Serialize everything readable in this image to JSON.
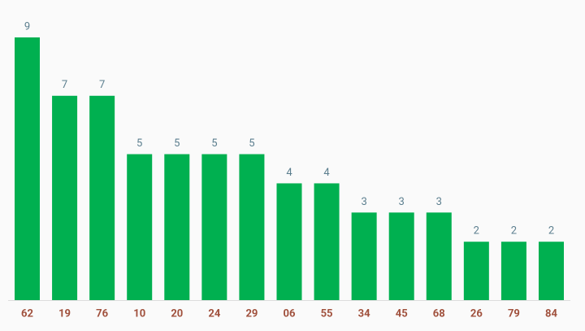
{
  "chart_data": {
    "type": "bar",
    "categories": [
      "62",
      "19",
      "76",
      "10",
      "20",
      "24",
      "29",
      "06",
      "55",
      "34",
      "45",
      "68",
      "26",
      "79",
      "84"
    ],
    "values": [
      9,
      7,
      7,
      5,
      5,
      5,
      5,
      4,
      4,
      3,
      3,
      3,
      2,
      2,
      2
    ],
    "color": "#00b050"
  }
}
